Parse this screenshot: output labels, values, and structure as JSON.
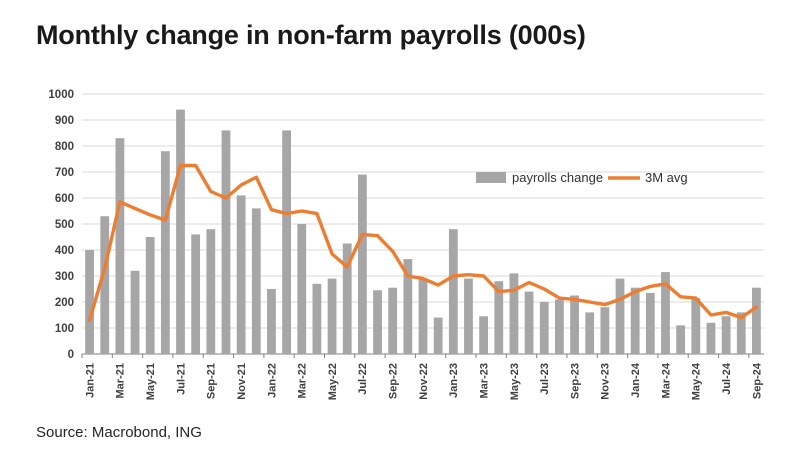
{
  "title": "Monthly change in non-farm payrolls (000s)",
  "source": "Source: Macrobond, ING",
  "colors": {
    "bar": "#a6a6a6",
    "line": "#ed7d31",
    "grid": "#d9d9d9",
    "axis": "#808080",
    "text": "#404040",
    "legend_text": "#333333"
  },
  "chart_data": {
    "type": "bar",
    "subtype": "bar+line combo",
    "title": "Monthly change in non-farm payrolls (000s)",
    "xlabel": "",
    "ylabel": "",
    "ylim": [
      0,
      1000
    ],
    "ytick_step": 100,
    "xtick_every": 2,
    "grid": true,
    "legend_position": "inside-right",
    "categories": [
      "Jan-21",
      "Feb-21",
      "Mar-21",
      "Apr-21",
      "May-21",
      "Jun-21",
      "Jul-21",
      "Aug-21",
      "Sep-21",
      "Oct-21",
      "Nov-21",
      "Dec-21",
      "Jan-22",
      "Feb-22",
      "Mar-22",
      "Apr-22",
      "May-22",
      "Jun-22",
      "Jul-22",
      "Aug-22",
      "Sep-22",
      "Oct-22",
      "Nov-22",
      "Dec-22",
      "Jan-23",
      "Feb-23",
      "Mar-23",
      "Apr-23",
      "May-23",
      "Jun-23",
      "Jul-23",
      "Aug-23",
      "Sep-23",
      "Oct-23",
      "Nov-23",
      "Dec-23",
      "Jan-24",
      "Feb-24",
      "Mar-24",
      "Apr-24",
      "May-24",
      "Jun-24",
      "Jul-24",
      "Aug-24",
      "Sep-24"
    ],
    "series": [
      {
        "name": "payrolls change",
        "type": "bar",
        "values": [
          400,
          530,
          830,
          320,
          450,
          780,
          940,
          460,
          480,
          860,
          610,
          560,
          250,
          860,
          500,
          270,
          290,
          425,
          690,
          245,
          255,
          365,
          290,
          140,
          480,
          290,
          145,
          280,
          310,
          240,
          200,
          210,
          225,
          160,
          180,
          290,
          255,
          235,
          315,
          110,
          215,
          120,
          145,
          160,
          255
        ]
      },
      {
        "name": "3M avg",
        "type": "line",
        "values": [
          130,
          330,
          585,
          560,
          535,
          515,
          725,
          725,
          625,
          600,
          650,
          680,
          555,
          540,
          550,
          540,
          385,
          335,
          460,
          455,
          395,
          300,
          290,
          265,
          300,
          305,
          300,
          240,
          245,
          275,
          250,
          215,
          210,
          200,
          190,
          210,
          240,
          260,
          270,
          220,
          215,
          150,
          160,
          140,
          180
        ]
      }
    ]
  }
}
